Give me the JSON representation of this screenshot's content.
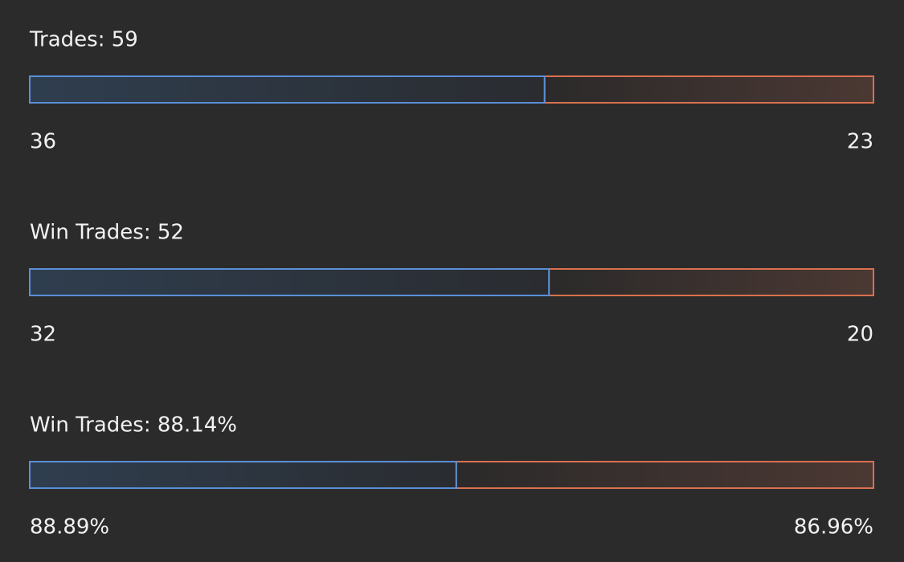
{
  "rows": [
    {
      "title": "Trades: 59",
      "left": 36,
      "right": 23
    },
    {
      "title": "Win Trades: 52",
      "left": 32,
      "right": 20
    },
    {
      "title": "Win Trades: 88.14%",
      "left": {
        "value": 88.89,
        "label": "88.89%"
      },
      "right": {
        "value": 86.96,
        "label": "86.96%"
      }
    }
  ]
}
